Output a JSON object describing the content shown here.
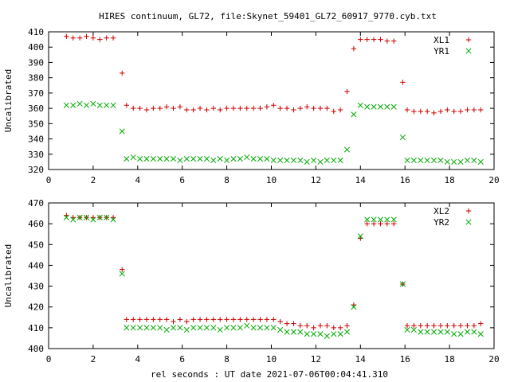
{
  "page": {
    "title": "HIRES continuum, GL72, file:Skynet_59401_GL72_60917_9770.cyb.txt",
    "xlabel": "rel seconds : UT date 2021-07-06T00:04:41.310"
  },
  "colors": {
    "red": "#cc0000",
    "green": "#00aa00",
    "frame": "#000000"
  },
  "chart_data": [
    {
      "type": "scatter",
      "title": "HIRES continuum, GL72, file:Skynet_59401_GL72_60917_9770.cyb.txt",
      "xlabel": "",
      "ylabel": "Uncalibrated",
      "xlim": [
        0,
        20
      ],
      "ylim": [
        320,
        410
      ],
      "xticks": [
        0,
        2,
        4,
        6,
        8,
        10,
        12,
        14,
        16,
        18,
        20
      ],
      "yticks": [
        320,
        330,
        340,
        350,
        360,
        370,
        380,
        390,
        400,
        410
      ],
      "grid": false,
      "legend": "top-right",
      "x": [
        0.8,
        1.1,
        1.4,
        1.7,
        2.0,
        2.3,
        2.6,
        2.9,
        3.3,
        3.5,
        3.8,
        4.1,
        4.4,
        4.7,
        5.0,
        5.3,
        5.6,
        5.9,
        6.2,
        6.5,
        6.8,
        7.1,
        7.4,
        7.7,
        8.0,
        8.3,
        8.6,
        8.9,
        9.2,
        9.5,
        9.8,
        10.1,
        10.4,
        10.7,
        11.0,
        11.3,
        11.6,
        11.9,
        12.2,
        12.5,
        12.8,
        13.1,
        13.4,
        13.7,
        14.0,
        14.3,
        14.6,
        14.9,
        15.2,
        15.5,
        15.9,
        16.1,
        16.4,
        16.7,
        17.0,
        17.3,
        17.6,
        17.9,
        18.2,
        18.5,
        18.8,
        19.1,
        19.4
      ],
      "series": [
        {
          "name": "XL1",
          "marker": "plus",
          "color": "#cc0000",
          "values": [
            407,
            406,
            406,
            407,
            406,
            405,
            406,
            406,
            383,
            362,
            360,
            360,
            359,
            360,
            360,
            361,
            360,
            361,
            359,
            359,
            360,
            359,
            360,
            359,
            360,
            360,
            360,
            360,
            360,
            360,
            361,
            362,
            360,
            360,
            359,
            360,
            361,
            360,
            360,
            360,
            358,
            359,
            371,
            399,
            405,
            405,
            405,
            405,
            404,
            404,
            377,
            359,
            358,
            358,
            358,
            357,
            358,
            359,
            358,
            358,
            359,
            359,
            359
          ]
        },
        {
          "name": "YR1",
          "marker": "cross",
          "color": "#00aa00",
          "values": [
            362,
            362,
            363,
            362,
            363,
            362,
            362,
            362,
            345,
            327,
            328,
            327,
            327,
            327,
            327,
            327,
            327,
            326,
            327,
            327,
            327,
            327,
            326,
            327,
            326,
            327,
            327,
            328,
            327,
            327,
            327,
            326,
            326,
            326,
            326,
            326,
            325,
            326,
            325,
            326,
            326,
            326,
            333,
            356,
            362,
            361,
            361,
            361,
            361,
            361,
            341,
            326,
            326,
            326,
            326,
            326,
            326,
            325,
            325,
            325,
            326,
            326,
            325
          ]
        }
      ]
    },
    {
      "type": "scatter",
      "title": "",
      "xlabel": "rel seconds : UT date 2021-07-06T00:04:41.310",
      "ylabel": "Uncalibrated",
      "xlim": [
        0,
        20
      ],
      "ylim": [
        400,
        470
      ],
      "xticks": [
        0,
        2,
        4,
        6,
        8,
        10,
        12,
        14,
        16,
        18,
        20
      ],
      "yticks": [
        400,
        410,
        420,
        430,
        440,
        450,
        460,
        470
      ],
      "grid": false,
      "legend": "top-right",
      "x": [
        0.8,
        1.1,
        1.4,
        1.7,
        2.0,
        2.3,
        2.6,
        2.9,
        3.3,
        3.5,
        3.8,
        4.1,
        4.4,
        4.7,
        5.0,
        5.3,
        5.6,
        5.9,
        6.2,
        6.5,
        6.8,
        7.1,
        7.4,
        7.7,
        8.0,
        8.3,
        8.6,
        8.9,
        9.2,
        9.5,
        9.8,
        10.1,
        10.4,
        10.7,
        11.0,
        11.3,
        11.6,
        11.9,
        12.2,
        12.5,
        12.8,
        13.1,
        13.4,
        13.7,
        14.0,
        14.3,
        14.6,
        14.9,
        15.2,
        15.5,
        15.9,
        16.1,
        16.4,
        16.7,
        17.0,
        17.3,
        17.6,
        17.9,
        18.2,
        18.5,
        18.8,
        19.1,
        19.4
      ],
      "series": [
        {
          "name": "XL2",
          "marker": "plus",
          "color": "#cc0000",
          "values": [
            464,
            463,
            463,
            463,
            463,
            463,
            463,
            463,
            438,
            414,
            414,
            414,
            414,
            414,
            414,
            414,
            413,
            414,
            413,
            414,
            414,
            414,
            414,
            414,
            414,
            414,
            414,
            414,
            414,
            414,
            414,
            414,
            413,
            412,
            412,
            411,
            411,
            410,
            411,
            411,
            410,
            410,
            411,
            421,
            453,
            460,
            460,
            460,
            460,
            460,
            431,
            411,
            411,
            411,
            411,
            411,
            411,
            411,
            411,
            411,
            411,
            411,
            412
          ]
        },
        {
          "name": "YR2",
          "marker": "cross",
          "color": "#00aa00",
          "values": [
            463,
            462,
            463,
            463,
            462,
            463,
            463,
            462,
            436,
            410,
            410,
            410,
            410,
            410,
            410,
            409,
            410,
            410,
            409,
            410,
            410,
            410,
            410,
            409,
            410,
            410,
            410,
            411,
            410,
            410,
            410,
            410,
            409,
            408,
            408,
            408,
            407,
            407,
            407,
            406,
            407,
            407,
            408,
            420,
            454,
            462,
            462,
            462,
            462,
            462,
            431,
            409,
            409,
            408,
            408,
            408,
            408,
            408,
            407,
            407,
            408,
            408,
            407
          ]
        }
      ]
    }
  ]
}
